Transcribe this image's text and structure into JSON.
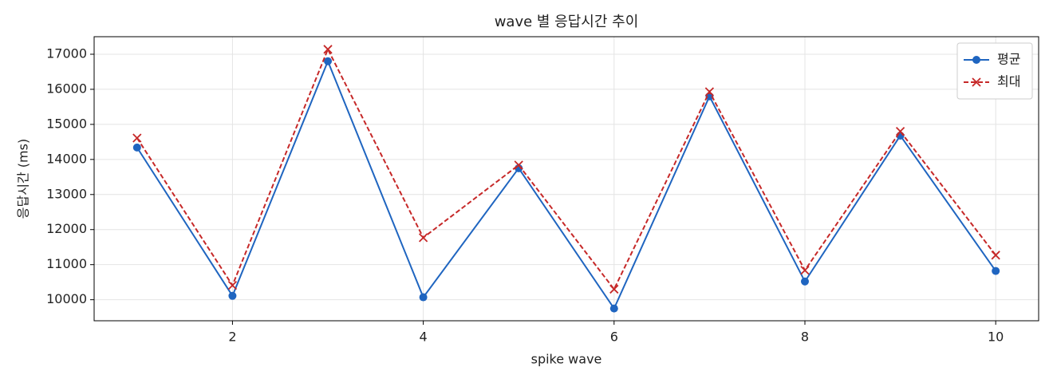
{
  "chart_data": {
    "type": "line",
    "title": "wave 별 응답시간 추이",
    "x_label": "spike wave",
    "y_label": "응답시간 (ms)",
    "x": [
      1,
      2,
      3,
      4,
      5,
      6,
      7,
      8,
      9,
      10
    ],
    "series": [
      {
        "name": "평균",
        "color": "#1f65c0",
        "marker": "o",
        "dash": false,
        "values": [
          14340,
          10110,
          16800,
          10070,
          13750,
          9750,
          15800,
          10520,
          14680,
          10820
        ]
      },
      {
        "name": "최대",
        "color": "#c62828",
        "marker": "x",
        "dash": true,
        "values": [
          14610,
          10410,
          17140,
          11770,
          13840,
          10300,
          15930,
          10840,
          14800,
          11270
        ]
      }
    ],
    "xlim": [
      0.55,
      10.45
    ],
    "ylim": [
      9400,
      17500
    ],
    "xticks": [
      2,
      4,
      6,
      8,
      10
    ],
    "yticks": [
      10000,
      11000,
      12000,
      13000,
      14000,
      15000,
      16000,
      17000
    ],
    "grid": true,
    "legend": "upper right"
  }
}
